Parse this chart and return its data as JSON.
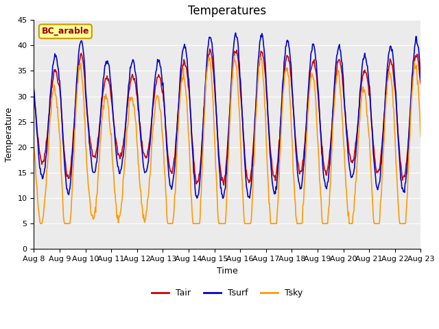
{
  "title": "Temperatures",
  "xlabel": "Time",
  "ylabel": "Temperature",
  "annotation": "BC_arable",
  "ylim": [
    0,
    45
  ],
  "date_labels": [
    "Aug 8",
    "Aug 9",
    "Aug 10",
    "Aug 11",
    "Aug 12",
    "Aug 13",
    "Aug 14",
    "Aug 15",
    "Aug 16",
    "Aug 17",
    "Aug 18",
    "Aug 19",
    "Aug 20",
    "Aug 21",
    "Aug 22",
    "Aug 23"
  ],
  "colors": {
    "Tair": "#cc0000",
    "Tsurf": "#0000cc",
    "Tsky": "#ff9900"
  },
  "legend_labels": [
    "Tair",
    "Tsurf",
    "Tsky"
  ],
  "plot_bg": "#ebebeb",
  "fig_bg": "#ffffff",
  "annotation_bg": "#ffff99",
  "annotation_border": "#cc9900",
  "annotation_text_color": "#990000",
  "grid_color": "#ffffff",
  "title_fontsize": 12,
  "axis_label_fontsize": 9,
  "tick_fontsize": 8,
  "legend_fontsize": 9,
  "linewidth": 1.2,
  "n_days": 15,
  "pts_per_day": 48,
  "tair_base": 26,
  "tsurf_extra": 3,
  "tsky_base": 18,
  "day_amps_tair": [
    9,
    12,
    8,
    8,
    8,
    11,
    13,
    13,
    13,
    12,
    11,
    11,
    9,
    11,
    12
  ],
  "day_amps_tsky_scale": 1.5
}
